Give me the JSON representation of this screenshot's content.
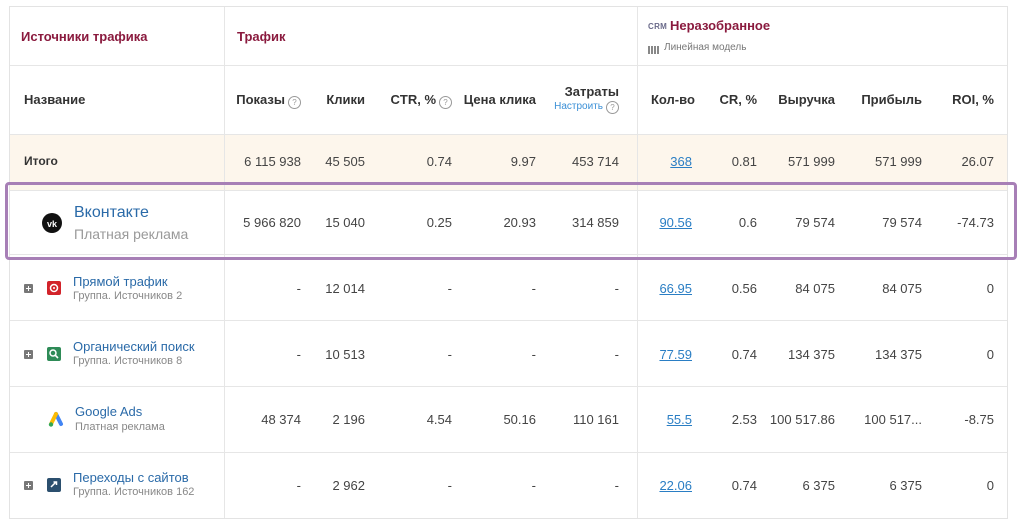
{
  "groups": {
    "sources": "Источники трафика",
    "traffic": "Трафик",
    "crm_badge": "CRM",
    "unsorted": "Неразобранное",
    "model": "Линейная модель"
  },
  "columns": {
    "name": "Название",
    "impressions": "Показы",
    "clicks": "Клики",
    "ctr": "CTR, %",
    "cpc": "Цена клика",
    "costs": "Затраты",
    "costs_setup": "Настроить",
    "qty": "Кол-во",
    "cr": "CR, %",
    "revenue": "Выручка",
    "profit": "Прибыль",
    "roi": "ROI, %"
  },
  "total": {
    "label": "Итого",
    "impressions": "6 115 938",
    "clicks": "45 505",
    "ctr": "0.74",
    "cpc": "9.97",
    "costs": "453 714",
    "qty": "368",
    "cr": "0.81",
    "revenue": "571 999",
    "profit": "571 999",
    "roi": "26.07"
  },
  "rows": [
    {
      "name": "Вконтакте",
      "sub": "Платная реклама",
      "icon": "vk-icon",
      "impressions": "5 966 820",
      "clicks": "15 040",
      "ctr": "0.25",
      "cpc": "20.93",
      "costs": "314 859",
      "qty": "90.56",
      "cr": "0.6",
      "revenue": "79 574",
      "profit": "79 574",
      "roi": "-74.73"
    },
    {
      "name": "Прямой трафик",
      "sub": "Группа. Источников 2",
      "icon": "direct-traffic-icon",
      "impressions": "-",
      "clicks": "12 014",
      "ctr": "-",
      "cpc": "-",
      "costs": "-",
      "qty": "66.95",
      "cr": "0.56",
      "revenue": "84 075",
      "profit": "84 075",
      "roi": "0"
    },
    {
      "name": "Органический поиск",
      "sub": "Группа. Источников 8",
      "icon": "organic-search-icon",
      "impressions": "-",
      "clicks": "10 513",
      "ctr": "-",
      "cpc": "-",
      "costs": "-",
      "qty": "77.59",
      "cr": "0.74",
      "revenue": "134 375",
      "profit": "134 375",
      "roi": "0"
    },
    {
      "name": "Google Ads",
      "sub": "Платная реклама",
      "icon": "google-ads-icon",
      "impressions": "48 374",
      "clicks": "2 196",
      "ctr": "4.54",
      "cpc": "50.16",
      "costs": "110 161",
      "qty": "55.5",
      "cr": "2.53",
      "revenue": "100 517.86",
      "profit": "100 517...",
      "roi": "-8.75"
    },
    {
      "name": "Переходы с сайтов",
      "sub": "Группа. Источников 162",
      "icon": "referral-icon",
      "impressions": "-",
      "clicks": "2 962",
      "ctr": "-",
      "cpc": "-",
      "costs": "-",
      "qty": "22.06",
      "cr": "0.74",
      "revenue": "6 375",
      "profit": "6 375",
      "roi": "0"
    }
  ],
  "colors": {
    "group_title": "#8a1a3e",
    "total_bg": "#fdf6ec",
    "link": "#2a7ec4",
    "highlight_border": "#a77fb6"
  }
}
